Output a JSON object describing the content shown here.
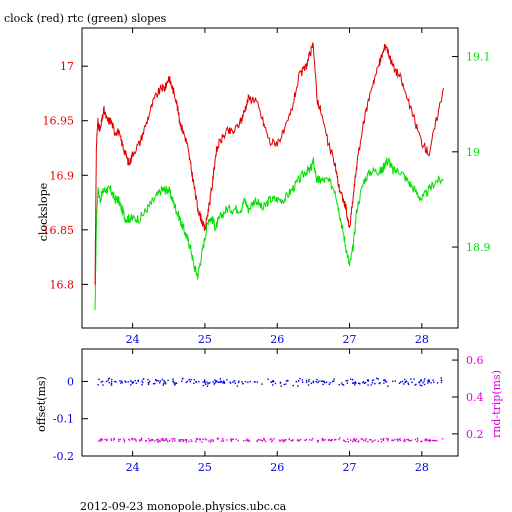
{
  "title": "clock (red) rtc (green) slopes",
  "footer": "2012-09-23  monopole.physics.ubc.ca",
  "colors": {
    "clock": "#e00000",
    "rtc": "#00e000",
    "offset": "#0000e0",
    "rndtrip": "#e000e0",
    "axis": "#000000"
  },
  "chart_data": [
    {
      "type": "line",
      "title": "clock (red) rtc (green) slopes",
      "xlabel": "",
      "ylabel": "clockslope",
      "xlim": [
        23.3,
        28.5
      ],
      "ylim": [
        16.76,
        17.035
      ],
      "y2lim": [
        18.815,
        19.13
      ],
      "x_ticks": [
        24,
        25,
        26,
        27,
        28
      ],
      "y_ticks": [
        16.8,
        16.85,
        16.9,
        16.95,
        17
      ],
      "y2_ticks": [
        18.9,
        19,
        19.1
      ],
      "series": [
        {
          "name": "clock",
          "axis": "left",
          "x": [
            23.48,
            23.5,
            23.52,
            23.55,
            23.6,
            23.65,
            23.7,
            23.75,
            23.8,
            23.85,
            23.9,
            23.95,
            24.0,
            24.1,
            24.2,
            24.3,
            24.4,
            24.45,
            24.5,
            24.55,
            24.6,
            24.65,
            24.7,
            24.75,
            24.8,
            24.85,
            24.9,
            24.95,
            25.0,
            25.05,
            25.1,
            25.15,
            25.2,
            25.3,
            25.4,
            25.5,
            25.55,
            25.6,
            25.7,
            25.8,
            25.9,
            26.0,
            26.1,
            26.2,
            26.3,
            26.4,
            26.45,
            26.5,
            26.55,
            26.6,
            26.7,
            26.8,
            26.85,
            26.9,
            26.95,
            27.0,
            27.05,
            27.1,
            27.2,
            27.3,
            27.4,
            27.45,
            27.5,
            27.55,
            27.6,
            27.7,
            27.8,
            27.9,
            28.0,
            28.1,
            28.2,
            28.3
          ],
          "y": [
            16.8,
            16.93,
            16.95,
            16.94,
            16.96,
            16.95,
            16.95,
            16.94,
            16.94,
            16.93,
            16.92,
            16.91,
            16.92,
            16.93,
            16.95,
            16.97,
            16.98,
            16.98,
            16.99,
            16.98,
            16.97,
            16.95,
            16.94,
            16.93,
            16.91,
            16.89,
            16.87,
            16.86,
            16.85,
            16.87,
            16.89,
            16.92,
            16.93,
            16.94,
            16.94,
            16.95,
            16.96,
            16.97,
            16.97,
            16.95,
            16.93,
            16.93,
            16.94,
            16.96,
            16.99,
            17.0,
            17.01,
            17.02,
            16.97,
            16.96,
            16.93,
            16.91,
            16.89,
            16.88,
            16.87,
            16.85,
            16.88,
            16.91,
            16.95,
            16.98,
            17.0,
            17.01,
            17.02,
            17.01,
            17.0,
            16.99,
            16.97,
            16.95,
            16.93,
            16.92,
            16.95,
            16.98
          ]
        },
        {
          "name": "rtc",
          "axis": "right",
          "x": [
            23.48,
            23.5,
            23.52,
            23.55,
            23.6,
            23.65,
            23.7,
            23.75,
            23.8,
            23.85,
            23.9,
            23.95,
            24.0,
            24.1,
            24.2,
            24.3,
            24.4,
            24.45,
            24.5,
            24.55,
            24.6,
            24.65,
            24.7,
            24.75,
            24.8,
            24.85,
            24.9,
            24.95,
            25.0,
            25.05,
            25.1,
            25.15,
            25.2,
            25.3,
            25.4,
            25.5,
            25.55,
            25.6,
            25.7,
            25.8,
            25.9,
            26.0,
            26.1,
            26.2,
            26.3,
            26.4,
            26.45,
            26.5,
            26.55,
            26.6,
            26.7,
            26.8,
            26.85,
            26.9,
            26.95,
            27.0,
            27.05,
            27.1,
            27.2,
            27.3,
            27.4,
            27.45,
            27.5,
            27.55,
            27.6,
            27.7,
            27.8,
            27.9,
            28.0,
            28.1,
            28.2,
            28.3
          ],
          "y": [
            18.83,
            18.93,
            18.96,
            18.95,
            18.96,
            18.96,
            18.96,
            18.95,
            18.95,
            18.94,
            18.93,
            18.93,
            18.93,
            18.93,
            18.94,
            18.95,
            18.96,
            18.96,
            18.96,
            18.95,
            18.94,
            18.93,
            18.92,
            18.91,
            18.9,
            18.88,
            18.87,
            18.89,
            18.91,
            18.93,
            18.93,
            18.92,
            18.93,
            18.94,
            18.94,
            18.94,
            18.95,
            18.94,
            18.95,
            18.94,
            18.95,
            18.95,
            18.95,
            18.96,
            18.97,
            18.98,
            18.98,
            18.99,
            18.97,
            18.97,
            18.97,
            18.96,
            18.94,
            18.92,
            18.9,
            18.88,
            18.9,
            18.94,
            18.97,
            18.98,
            18.98,
            18.98,
            18.99,
            18.99,
            18.98,
            18.98,
            18.97,
            18.96,
            18.95,
            18.96,
            18.97,
            18.97
          ]
        }
      ]
    },
    {
      "type": "scatter",
      "xlabel": "",
      "ylabel": "offset(ms)",
      "y2label": "rnd-trip(ms)",
      "xlim": [
        23.3,
        28.5
      ],
      "ylim": [
        -0.2,
        0.087
      ],
      "y2lim": [
        0.08,
        0.66
      ],
      "x_ticks": [
        24,
        25,
        26,
        27,
        28
      ],
      "y_ticks": [
        -0.2,
        -0.1,
        0
      ],
      "y2_ticks": [
        0.2,
        0.4,
        0.6
      ],
      "series": [
        {
          "name": "offset",
          "axis": "left",
          "x_range": [
            23.5,
            28.3
          ],
          "y_center": 0.0,
          "y_spread": 0.012
        },
        {
          "name": "rnd-trip",
          "axis": "right",
          "x_range": [
            23.5,
            28.3
          ],
          "y_center": 0.17,
          "y_spread": 0.012
        }
      ]
    }
  ]
}
